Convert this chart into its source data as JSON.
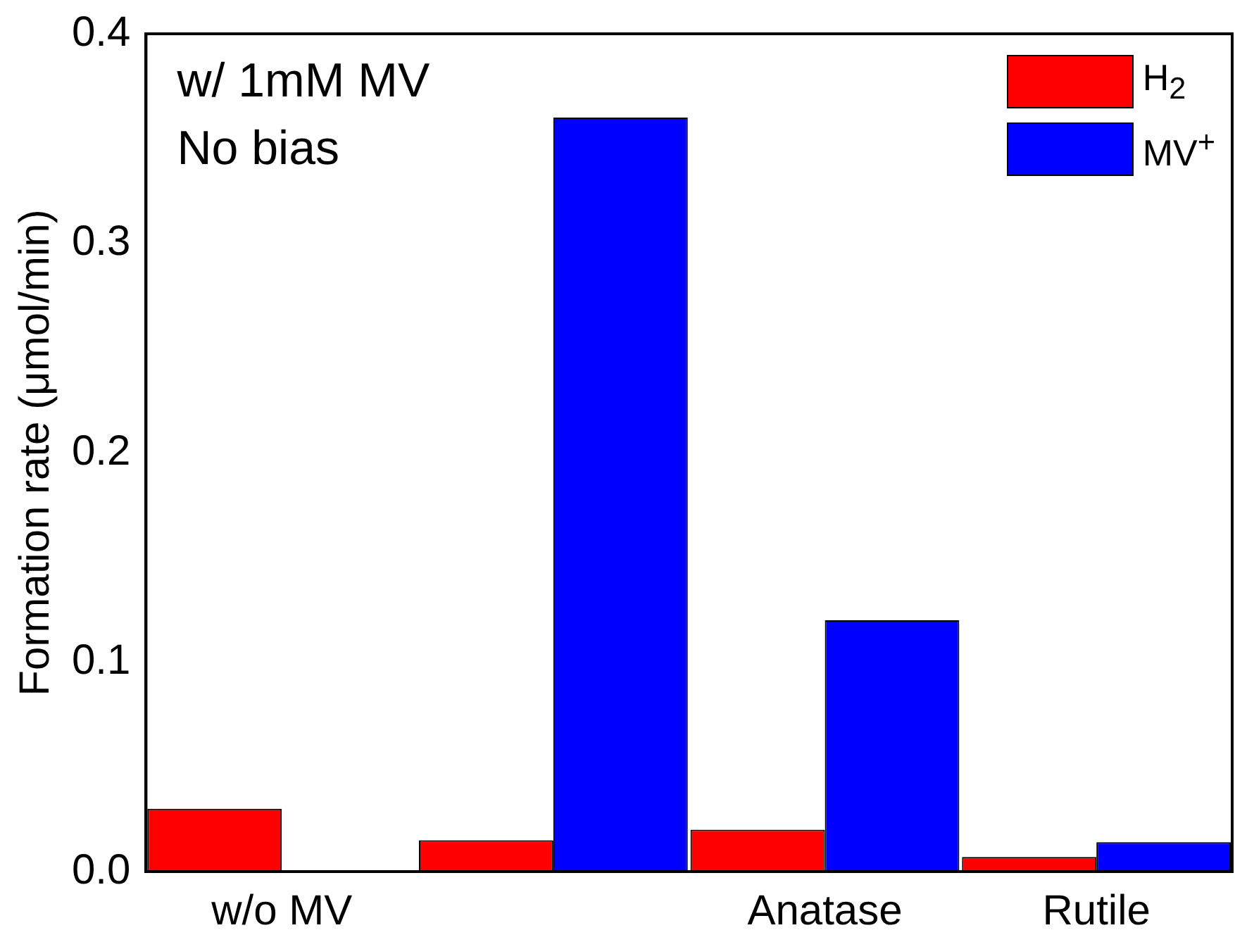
{
  "chart_data": {
    "type": "bar",
    "ylabel": "Formation rate (μmol/min)",
    "categories": [
      "w/o MV",
      null,
      "Anatase",
      "Rutile"
    ],
    "series": [
      {
        "name": "H$_{2}$",
        "color": "#ff0000",
        "values": [
          0.03,
          0.015,
          0.02,
          0.007
        ]
      },
      {
        "name": "MV$^{+}$",
        "color": "#0000ff",
        "values": [
          null,
          0.36,
          0.12,
          0.014
        ]
      }
    ],
    "ylim": [
      0,
      0.4
    ],
    "yticks": [
      {
        "value": 0,
        "label": "0.0"
      },
      0.1,
      0.2,
      0.3,
      0.4
    ],
    "grid": false,
    "legend": "top right",
    "annotations": [
      "w/ 1mM MV",
      "No bias"
    ]
  }
}
